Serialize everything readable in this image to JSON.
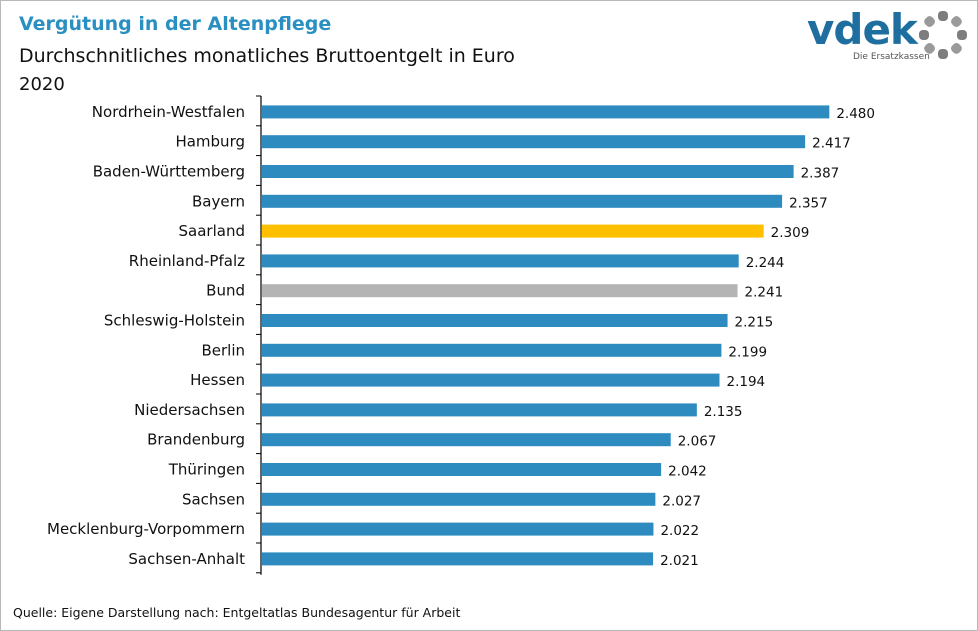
{
  "header": {
    "title": "Vergütung in der Altenpflege",
    "subtitle": "Durchschnitliches monatliches Bruttoentgelt in Euro",
    "year": "2020"
  },
  "logo": {
    "text": "vdek",
    "tagline": "Die Ersatzkassen"
  },
  "footer": {
    "source": "Quelle: Eigene Darstellung nach: Entgeltatlas Bundesagentur für Arbeit"
  },
  "colors": {
    "default_bar": "#2e8bc0",
    "highlight_bar": "#ffc000",
    "reference_bar": "#b4b4b4",
    "title": "#2a8fc1"
  },
  "chart_data": {
    "type": "bar",
    "orientation": "horizontal",
    "title": "Vergütung in der Altenpflege",
    "subtitle": "Durchschnitliches monatliches Bruttoentgelt in Euro",
    "xlabel": "",
    "ylabel": "",
    "xlim": [
      1000,
      2500
    ],
    "grid": false,
    "legend": "none",
    "categories": [
      "Nordrhein-Westfalen",
      "Hamburg",
      "Baden-Württemberg ",
      "Bayern",
      "Saarland",
      "Rheinland-Pfalz",
      "Bund",
      "Schleswig-Holstein",
      "Berlin",
      "Hessen",
      "Niedersachsen",
      "Brandenburg",
      "Thüringen",
      "Sachsen",
      "Mecklenburg-Vorpommern",
      "Sachsen-Anhalt"
    ],
    "values": [
      2480,
      2417,
      2387,
      2357,
      2309,
      2244,
      2241,
      2215,
      2199,
      2194,
      2135,
      2067,
      2042,
      2027,
      2022,
      2021
    ],
    "value_labels": [
      "2.480",
      "2.417",
      "2.387",
      "2.357",
      "2.309",
      "2.244",
      "2.241",
      "2.215",
      "2.199",
      "2.194",
      "2.135",
      "2.067",
      "2.042",
      "2.027",
      "2.022",
      "2.021"
    ],
    "bar_roles": [
      "default",
      "default",
      "default",
      "default",
      "highlight",
      "default",
      "reference",
      "default",
      "default",
      "default",
      "default",
      "default",
      "default",
      "default",
      "default",
      "default"
    ]
  }
}
